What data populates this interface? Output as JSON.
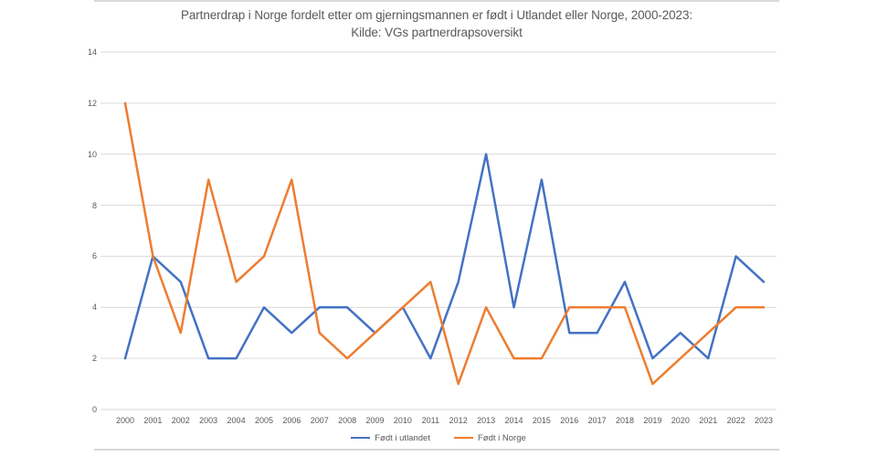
{
  "chart_data": {
    "type": "line",
    "title": "Partnerdrap i Norge fordelt etter om gjerningsmannen er født i Utlandet eller Norge, 2000-2023:",
    "subtitle": "Kilde: VGs partnerdrapsoversikt",
    "categories": [
      "2000",
      "2001",
      "2002",
      "2003",
      "2004",
      "2005",
      "2006",
      "2007",
      "2008",
      "2009",
      "2010",
      "2011",
      "2012",
      "2013",
      "2014",
      "2015",
      "2016",
      "2017",
      "2018",
      "2019",
      "2020",
      "2021",
      "2022",
      "2023"
    ],
    "series": [
      {
        "name": "Født i utlandet",
        "color": "#4472C4",
        "values": [
          2,
          6,
          5,
          2,
          2,
          4,
          3,
          4,
          4,
          3,
          4,
          2,
          5,
          10,
          4,
          9,
          3,
          3,
          5,
          2,
          3,
          2,
          6,
          5
        ]
      },
      {
        "name": "Født i Norge",
        "color": "#ED7D31",
        "values": [
          12,
          6,
          3,
          9,
          5,
          6,
          9,
          3,
          2,
          3,
          4,
          5,
          1,
          4,
          2,
          2,
          4,
          4,
          4,
          1,
          2,
          3,
          4,
          4
        ]
      }
    ],
    "ylim": [
      0,
      14
    ],
    "yticks": [
      0,
      2,
      4,
      6,
      8,
      10,
      12,
      14
    ],
    "xlabel": "",
    "ylabel": "",
    "grid": "horizontal",
    "legend_position": "bottom"
  },
  "colors": {
    "grid": "#D9D9D9",
    "axis_text": "#595959",
    "title_text": "#595959",
    "frame_border": "#D9D9D9",
    "background": "#FFFFFF"
  }
}
